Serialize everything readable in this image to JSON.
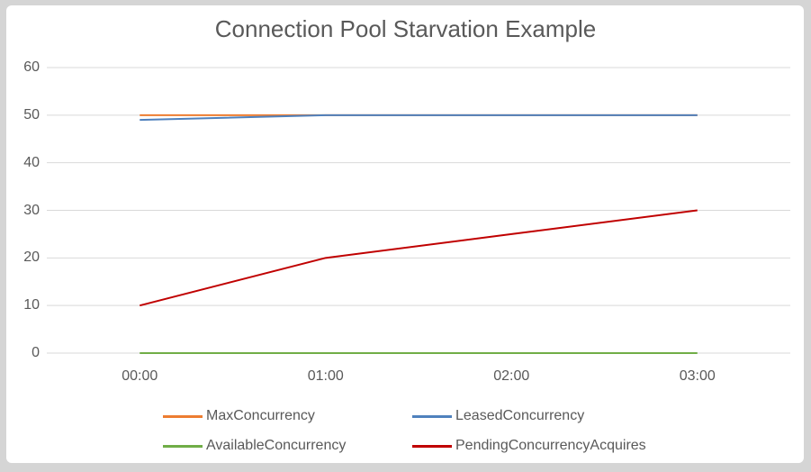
{
  "window": {
    "frame_color": "#d5d5d5",
    "panel_color": "#ffffff"
  },
  "chart_data": {
    "type": "line",
    "title": "Connection Pool Starvation Example",
    "categories": [
      "00:00",
      "01:00",
      "02:00",
      "03:00"
    ],
    "series": [
      {
        "name": "MaxConcurrency",
        "color": "#ED7D31",
        "values": [
          50,
          50,
          50,
          50
        ]
      },
      {
        "name": "LeasedConcurrency",
        "color": "#4F81BD",
        "values": [
          49,
          50,
          50,
          50
        ]
      },
      {
        "name": "AvailableConcurrency",
        "color": "#70AD47",
        "values": [
          0,
          0,
          0,
          0
        ]
      },
      {
        "name": "PendingConcurrencyAcquires",
        "color": "#C00000",
        "values": [
          10,
          20,
          25,
          30
        ]
      }
    ],
    "xlabel": "",
    "ylabel": "",
    "ylim": [
      0,
      60
    ],
    "yticks": [
      0,
      10,
      20,
      30,
      40,
      50,
      60
    ],
    "grid": true,
    "gridline_color": "#D9D9D9",
    "text_color": "#595959",
    "line_width": 2,
    "legend_position": "bottom"
  }
}
